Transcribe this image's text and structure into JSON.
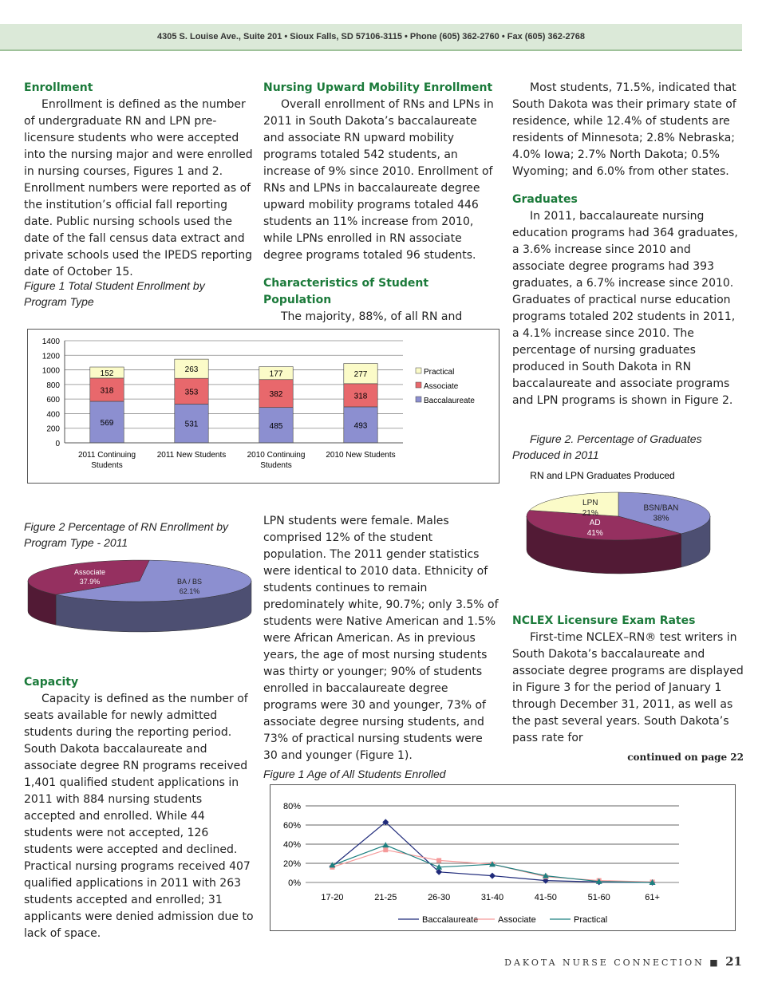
{
  "header": {
    "address": "4305 S. Louise Ave., Suite 201 • Sioux Falls, SD 57106-3115 • Phone (605) 362-2760 • Fax (605) 362-2768"
  },
  "col1": {
    "enroll_h": "Enrollment",
    "enroll_p": "Enrollment is defined as the number of undergraduate RN and LPN pre-licensure students who were accepted into the nursing major and were enrolled in nursing courses, Figures 1 and 2. Enrollment numbers were reported as of the institution’s official fall reporting date. Public nursing schools used the date of the fall census data extract and private schools used the IPEDS reporting date of October 15.",
    "fig1_cap": "Figure 1 Total Student Enrollment by Program Type",
    "fig2_cap": "Figure 2 Percentage of RN Enrollment by Program Type - 2011",
    "cap_h": "Capacity",
    "cap_p1": "Capacity is defined as the number of seats available for newly admitted students during the reporting period. South Dakota baccalaureate and associate degree RN programs received 1,401 qualified student applications in 2011 with 884 nursing students accepted and enrolled. While 44 students were not accepted, 126 students were accepted and declined.",
    "cap_p2": "Practical nursing programs received 407 qualified applications in 2011 with 263 students accepted and enrolled; 31 applicants were denied admission due to lack of space."
  },
  "col2": {
    "upward_h": "Nursing Upward Mobility Enrollment",
    "upward_p": "Overall enrollment of RNs and LPNs in 2011 in South Dakota’s baccalaureate and associate RN upward mobility programs totaled 542 students, an increase of 9% since 2010. Enrollment of RNs and LPNs in baccalaureate degree upward mobility programs totaled 446 students an 11% increase from 2010, while LPNs enrolled in RN associate degree programs totaled 96 students.",
    "char_h": "Characteristics of Student Population",
    "char_p1": "The majority, 88%, of all RN and",
    "char_p2": "LPN students were female. Males comprised 12% of the student population. The 2011 gender statistics were identical to 2010 data. Ethnicity of students continues to remain predominately white, 90.7%; only 3.5% of students were Native American and 1.5% were African American. As in previous years, the age of most nursing students was thirty or younger; 90% of students enrolled in baccalaureate degree programs were 30 and younger, 73% of associate degree nursing students, and 73% of practical nursing students were 30 and younger (Figure 1).",
    "fig_age_cap": "Figure 1 Age of All Students Enrolled"
  },
  "col3": {
    "res_p": "Most students, 71.5%, indicated that South Dakota was their primary state of residence, while 12.4% of students are residents of Minnesota; 2.8% Nebraska; 4.0% Iowa; 2.7% North Dakota; 0.5% Wyoming; and 6.0% from other states.",
    "grad_h": "Graduates",
    "grad_p": "In 2011, baccalaureate nursing education programs had 364 graduates, a 3.6% increase since 2010 and associate degree programs had 393 graduates, a 6.7% increase since 2010. Graduates of practical nurse education programs totaled 202 students in 2011, a 4.1% increase since 2010. The percentage of nursing graduates produced in South Dakota in RN baccalaureate and associate programs and LPN programs is shown in Figure 2.",
    "fig2_cap": "Figure 2. Percentage of Graduates Produced in 2011",
    "nclex_h": "NCLEX Licensure Exam Rates",
    "nclex_p": "First-time NCLEX–RN® test writers in South Dakota’s baccalaureate and associate degree programs are displayed in Figure 3 for the period of January 1 through December 31, 2011, as well as the past several years. South Dakota’s pass rate for",
    "continued": "continued on page 22"
  },
  "footer": {
    "publication": "DAKOTA NURSE CONNECTION",
    "page": "21"
  },
  "chart_data": [
    {
      "type": "bar",
      "stacked": true,
      "title": "",
      "categories": [
        "2011 Continuing Students",
        "2011 New Students",
        "2010 Continuing Students",
        "2010 New Students"
      ],
      "series": [
        {
          "name": "Baccalaureate",
          "values": [
            569,
            531,
            485,
            493
          ],
          "color": "#8c8fd0"
        },
        {
          "name": "Associate",
          "values": [
            318,
            353,
            382,
            318
          ],
          "color": "#e8686c"
        },
        {
          "name": "Practical",
          "values": [
            152,
            263,
            177,
            277
          ],
          "color": "#fbfbc8"
        }
      ],
      "ylim": [
        0,
        1400
      ],
      "yticks": [
        0,
        200,
        400,
        600,
        800,
        1000,
        1200,
        1400
      ],
      "legend": "right",
      "grid": true
    },
    {
      "type": "pie",
      "title": "",
      "slices": [
        {
          "label": "BA / BS",
          "pct": "62.1%",
          "value": 62.1,
          "color": "#8c8fd0"
        },
        {
          "label": "Associate",
          "pct": "37.9%",
          "value": 37.9,
          "color": "#953060"
        }
      ]
    },
    {
      "type": "pie",
      "title": "RN and LPN Graduates Produced",
      "slices": [
        {
          "label": "BSN/BAN",
          "pct": "38%",
          "value": 38,
          "color": "#8c8fd0"
        },
        {
          "label": "AD",
          "pct": "41%",
          "value": 41,
          "color": "#953060"
        },
        {
          "label": "LPN",
          "pct": "21%",
          "value": 21,
          "color": "#fbfbc8"
        }
      ]
    },
    {
      "type": "line",
      "title": "",
      "categories": [
        "17-20",
        "21-25",
        "26-30",
        "31-40",
        "41-50",
        "51-60",
        "61+"
      ],
      "series": [
        {
          "name": "Baccalaureate",
          "values": [
            17,
            63,
            11,
            7,
            2,
            0.5,
            0
          ],
          "color": "#1f2a7a"
        },
        {
          "name": "Associate",
          "values": [
            16,
            34,
            23,
            19,
            6,
            2,
            0.5
          ],
          "color": "#f59a9a"
        },
        {
          "name": "Practical",
          "values": [
            18,
            39,
            16,
            19,
            7,
            1,
            0
          ],
          "color": "#1d8080"
        }
      ],
      "ylim": [
        0,
        80
      ],
      "yticks": [
        "0%",
        "20%",
        "40%",
        "60%",
        "80%"
      ],
      "legend": "bottom",
      "grid": true
    }
  ]
}
